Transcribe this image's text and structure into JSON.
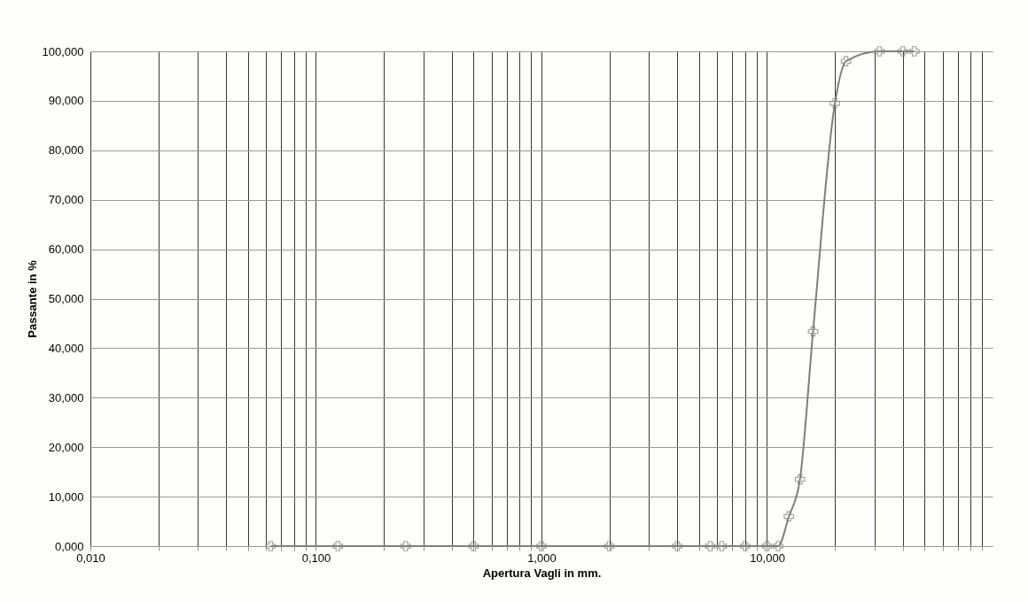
{
  "chart_data": {
    "type": "line",
    "xlabel": "Apertura Vagli in mm.",
    "ylabel": "Passante in %",
    "log": "x",
    "grid": true,
    "marker": "cross",
    "line_style": "solid",
    "legend": false,
    "xlim": [
      0.01,
      100
    ],
    "ylim": [
      0,
      100
    ],
    "xticks": [
      {
        "value": 0.01,
        "label": "0,010"
      },
      {
        "value": 0.02,
        "label": null
      },
      {
        "value": 0.03,
        "label": null
      },
      {
        "value": 0.04,
        "label": null
      },
      {
        "value": 0.05,
        "label": null
      },
      {
        "value": 0.06,
        "label": null
      },
      {
        "value": 0.07,
        "label": null
      },
      {
        "value": 0.08,
        "label": null
      },
      {
        "value": 0.09,
        "label": null
      },
      {
        "value": 0.1,
        "label": "0,100"
      },
      {
        "value": 0.2,
        "label": null
      },
      {
        "value": 0.3,
        "label": null
      },
      {
        "value": 0.4,
        "label": null
      },
      {
        "value": 0.5,
        "label": null
      },
      {
        "value": 0.6,
        "label": null
      },
      {
        "value": 0.7,
        "label": null
      },
      {
        "value": 0.8,
        "label": null
      },
      {
        "value": 0.9,
        "label": null
      },
      {
        "value": 1,
        "label": "1,000"
      },
      {
        "value": 2,
        "label": null
      },
      {
        "value": 3,
        "label": null
      },
      {
        "value": 4,
        "label": null
      },
      {
        "value": 5,
        "label": null
      },
      {
        "value": 6,
        "label": null
      },
      {
        "value": 7,
        "label": null
      },
      {
        "value": 8,
        "label": null
      },
      {
        "value": 9,
        "label": null
      },
      {
        "value": 10,
        "label": "10,000"
      },
      {
        "value": 20,
        "label": null
      },
      {
        "value": 30,
        "label": null
      },
      {
        "value": 40,
        "label": null
      },
      {
        "value": 50,
        "label": null
      },
      {
        "value": 60,
        "label": null
      },
      {
        "value": 70,
        "label": null
      },
      {
        "value": 80,
        "label": null
      },
      {
        "value": 90,
        "label": null
      }
    ],
    "yticks": [
      {
        "value": 0,
        "label": "0,000"
      },
      {
        "value": 10,
        "label": "10,000"
      },
      {
        "value": 20,
        "label": "20,000"
      },
      {
        "value": 30,
        "label": "30,000"
      },
      {
        "value": 40,
        "label": "40,000"
      },
      {
        "value": 50,
        "label": "50,000"
      },
      {
        "value": 60,
        "label": "60,000"
      },
      {
        "value": 70,
        "label": "70,000"
      },
      {
        "value": 80,
        "label": "80,000"
      },
      {
        "value": 90,
        "label": "90,000"
      },
      {
        "value": 100,
        "label": "100,000"
      }
    ],
    "series": [
      {
        "color": "#7f7f7f",
        "x": [
          0.063,
          0.125,
          0.25,
          0.5,
          1,
          2,
          4,
          5.6,
          6.3,
          8,
          10,
          11.2,
          12.5,
          14,
          16,
          20,
          22.4,
          31.5,
          40,
          45
        ],
        "values": [
          0,
          0,
          0,
          0,
          0,
          0,
          0,
          0,
          0,
          0,
          0,
          0,
          6,
          13.5,
          43.4,
          89.5,
          98,
          100,
          100,
          100
        ]
      }
    ]
  }
}
